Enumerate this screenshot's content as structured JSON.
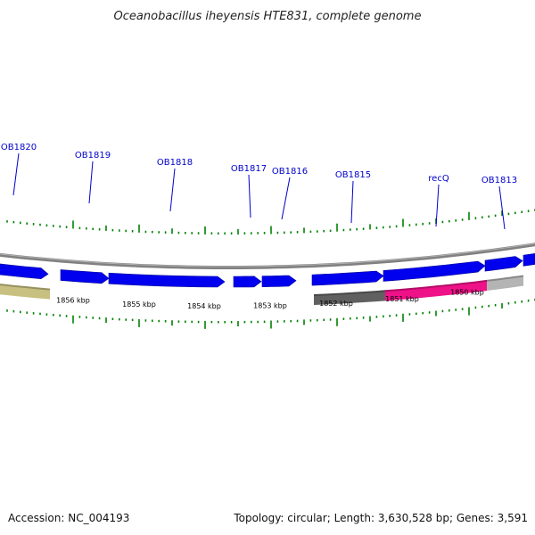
{
  "title": "Oceanobacillus iheyensis HTE831, complete genome",
  "footer": {
    "accession_label": "Accession:",
    "accession": "NC_004193",
    "topology_label": "Topology:",
    "topology": "circular",
    "length_label": "Length:",
    "length": "3,630,528 bp",
    "genes_label": "Genes:",
    "genes": "3,591"
  },
  "colors": {
    "gene": "#0000ee",
    "gene_dark": "#000099",
    "backbone": "#808080",
    "tick": "#008000",
    "label": "#0000cc",
    "feature_tan": "#c8c080",
    "feature_dark_gray": "#606060",
    "feature_magenta": "#ee1188",
    "feature_light_gray": "#b4b4b4"
  },
  "scale_labels": [
    "1856 kbp",
    "1855 kbp",
    "1854 kbp",
    "1853 kbp",
    "1852 kbp",
    "1851 kbp",
    "1850 kbp"
  ],
  "gene_labels": [
    "OB1820",
    "OB1819",
    "OB1818",
    "OB1817",
    "OB1816",
    "OB1815",
    "recQ",
    "OB1813"
  ],
  "features": [
    {
      "name": "feature-tan",
      "color": "#c8c080"
    },
    {
      "name": "feature-dark-gray",
      "color": "#606060"
    },
    {
      "name": "feature-recq-magenta",
      "color": "#ee1188"
    },
    {
      "name": "feature-light-gray",
      "color": "#b4b4b4"
    }
  ]
}
